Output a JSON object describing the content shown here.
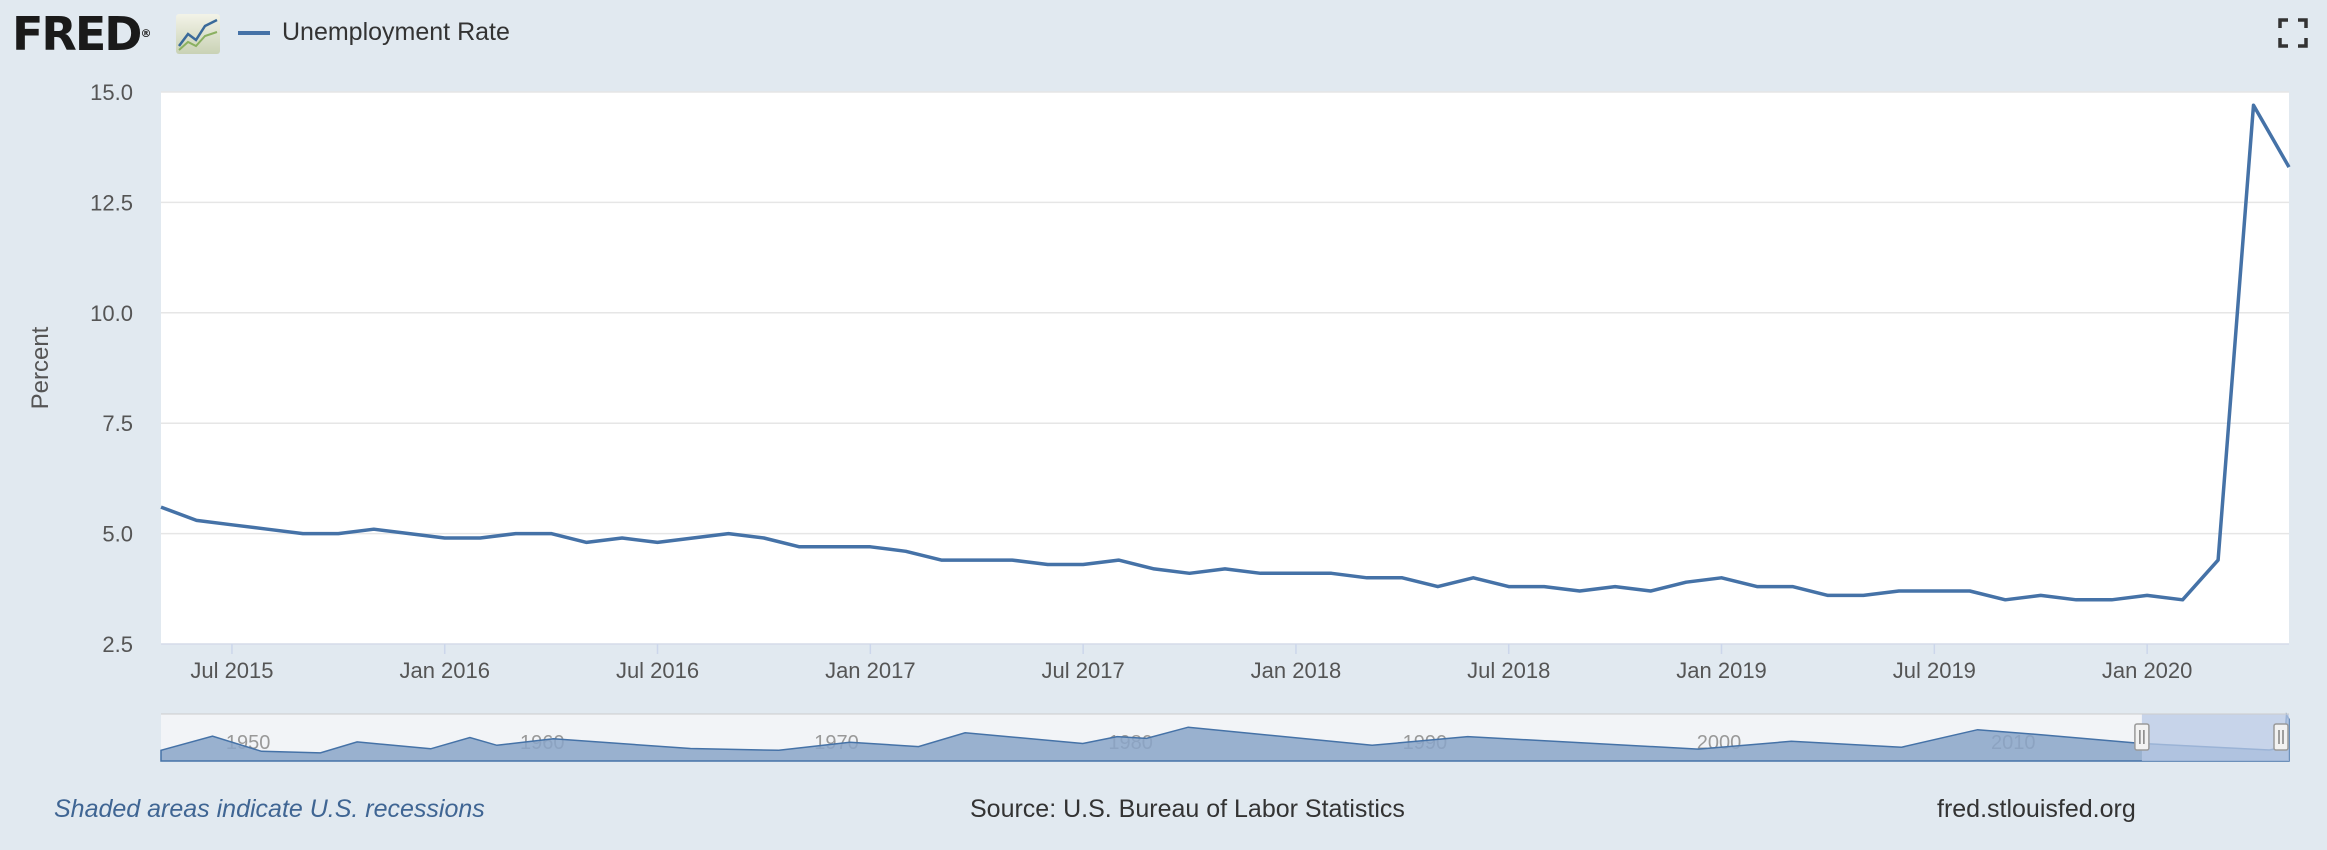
{
  "app": {
    "logo_text": "FRED",
    "logo_mark": "®",
    "logo_icon": "line-chart-icon",
    "fullscreen_icon": "fullscreen-icon"
  },
  "legend": {
    "series_name": "Unemployment Rate",
    "color": "#4572a7"
  },
  "footer": {
    "recession_note": "Shaded areas indicate U.S. recessions",
    "source": "Source: U.S. Bureau of Labor Statistics",
    "site": "fred.stlouisfed.org"
  },
  "colors": {
    "background": "#e1e9f0",
    "plot_background": "#ffffff",
    "series_line": "#4572a7",
    "grid": "#e6e6e6",
    "navigator_fill": "#8aa4c8",
    "navigator_selection": "#b8c9e6"
  },
  "chart_data": {
    "type": "line",
    "title": "",
    "xlabel": "",
    "ylabel": "Percent",
    "ylim": [
      2.5,
      15.0
    ],
    "xlim": [
      "2015-05",
      "2020-05"
    ],
    "y_ticks": [
      "2.5",
      "5.0",
      "7.5",
      "10.0",
      "12.5",
      "15.0"
    ],
    "x_ticks": [
      {
        "label": "Jul 2015",
        "date": "2015-07"
      },
      {
        "label": "Jan 2016",
        "date": "2016-01"
      },
      {
        "label": "Jul 2016",
        "date": "2016-07"
      },
      {
        "label": "Jan 2017",
        "date": "2017-01"
      },
      {
        "label": "Jul 2017",
        "date": "2017-07"
      },
      {
        "label": "Jan 2018",
        "date": "2018-01"
      },
      {
        "label": "Jul 2018",
        "date": "2018-07"
      },
      {
        "label": "Jan 2019",
        "date": "2019-01"
      },
      {
        "label": "Jul 2019",
        "date": "2019-07"
      },
      {
        "label": "Jan 2020",
        "date": "2020-01"
      }
    ],
    "grid": true,
    "legend_position": "top-left",
    "series": [
      {
        "name": "Unemployment Rate",
        "color": "#4572a7",
        "points": [
          [
            "2015-05",
            5.6
          ],
          [
            "2015-06",
            5.3
          ],
          [
            "2015-07",
            5.2
          ],
          [
            "2015-08",
            5.1
          ],
          [
            "2015-09",
            5.0
          ],
          [
            "2015-10",
            5.0
          ],
          [
            "2015-11",
            5.1
          ],
          [
            "2015-12",
            5.0
          ],
          [
            "2016-01",
            4.9
          ],
          [
            "2016-02",
            4.9
          ],
          [
            "2016-03",
            5.0
          ],
          [
            "2016-04",
            5.0
          ],
          [
            "2016-05",
            4.8
          ],
          [
            "2016-06",
            4.9
          ],
          [
            "2016-07",
            4.8
          ],
          [
            "2016-08",
            4.9
          ],
          [
            "2016-09",
            5.0
          ],
          [
            "2016-10",
            4.9
          ],
          [
            "2016-11",
            4.7
          ],
          [
            "2016-12",
            4.7
          ],
          [
            "2017-01",
            4.7
          ],
          [
            "2017-02",
            4.6
          ],
          [
            "2017-03",
            4.4
          ],
          [
            "2017-04",
            4.4
          ],
          [
            "2017-05",
            4.4
          ],
          [
            "2017-06",
            4.3
          ],
          [
            "2017-07",
            4.3
          ],
          [
            "2017-08",
            4.4
          ],
          [
            "2017-09",
            4.2
          ],
          [
            "2017-10",
            4.1
          ],
          [
            "2017-11",
            4.2
          ],
          [
            "2017-12",
            4.1
          ],
          [
            "2018-01",
            4.1
          ],
          [
            "2018-02",
            4.1
          ],
          [
            "2018-03",
            4.0
          ],
          [
            "2018-04",
            4.0
          ],
          [
            "2018-05",
            3.8
          ],
          [
            "2018-06",
            4.0
          ],
          [
            "2018-07",
            3.8
          ],
          [
            "2018-08",
            3.8
          ],
          [
            "2018-09",
            3.7
          ],
          [
            "2018-10",
            3.8
          ],
          [
            "2018-11",
            3.7
          ],
          [
            "2018-12",
            3.9
          ],
          [
            "2019-01",
            4.0
          ],
          [
            "2019-02",
            3.8
          ],
          [
            "2019-03",
            3.8
          ],
          [
            "2019-04",
            3.6
          ],
          [
            "2019-05",
            3.6
          ],
          [
            "2019-06",
            3.7
          ],
          [
            "2019-07",
            3.7
          ],
          [
            "2019-08",
            3.7
          ],
          [
            "2019-09",
            3.5
          ],
          [
            "2019-10",
            3.6
          ],
          [
            "2019-11",
            3.5
          ],
          [
            "2019-12",
            3.5
          ],
          [
            "2020-01",
            3.6
          ],
          [
            "2020-02",
            3.5
          ],
          [
            "2020-03",
            4.4
          ],
          [
            "2020-04",
            14.7
          ],
          [
            "2020-05",
            13.3
          ]
        ]
      }
    ]
  },
  "navigator": {
    "labels": [
      "1950",
      "1960",
      "1970",
      "1980",
      "1990",
      "2000",
      "2010"
    ],
    "range": [
      "1948-01",
      "2020-05"
    ],
    "selected_range": [
      "2015-05",
      "2020-05"
    ],
    "series_points": [
      [
        "1948-01",
        3.4
      ],
      [
        "1949-10",
        7.9
      ],
      [
        "1951-06",
        3.1
      ],
      [
        "1953-06",
        2.6
      ],
      [
        "1954-09",
        6.1
      ],
      [
        "1957-03",
        3.9
      ],
      [
        "1958-07",
        7.5
      ],
      [
        "1959-06",
        5.0
      ],
      [
        "1961-05",
        7.1
      ],
      [
        "1966-01",
        4.0
      ],
      [
        "1969-01",
        3.4
      ],
      [
        "1971-06",
        6.0
      ],
      [
        "1973-10",
        4.6
      ],
      [
        "1975-05",
        9.0
      ],
      [
        "1979-05",
        5.6
      ],
      [
        "1980-07",
        7.8
      ],
      [
        "1981-07",
        7.2
      ],
      [
        "1982-12",
        10.8
      ],
      [
        "1989-03",
        5.0
      ],
      [
        "1992-06",
        7.8
      ],
      [
        "2000-04",
        3.8
      ],
      [
        "2003-06",
        6.3
      ],
      [
        "2007-03",
        4.4
      ],
      [
        "2009-10",
        10.0
      ],
      [
        "2012-01",
        8.3
      ],
      [
        "2015-05",
        5.6
      ],
      [
        "2019-09",
        3.5
      ],
      [
        "2020-03",
        4.4
      ],
      [
        "2020-04",
        14.7
      ],
      [
        "2020-05",
        13.3
      ]
    ]
  }
}
